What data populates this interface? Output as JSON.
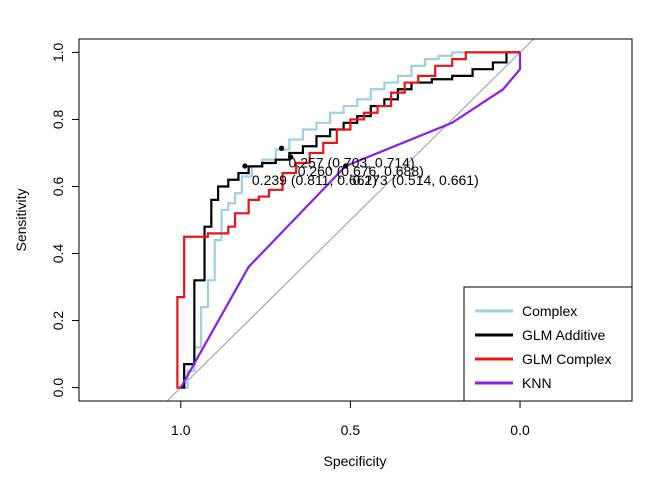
{
  "chart_data": {
    "type": "line",
    "title": "",
    "xlabel": "Specificity",
    "ylabel": "Sensitivity",
    "xlim": [
      1.3,
      -0.33
    ],
    "ylim": [
      -0.04,
      1.04
    ],
    "x_reversed": true,
    "xticks": [
      1.0,
      0.5,
      0.0
    ],
    "xtick_labels": [
      "1.0",
      "0.5",
      "0.0"
    ],
    "yticks": [
      0.0,
      0.2,
      0.4,
      0.6,
      0.8,
      1.0
    ],
    "ytick_labels": [
      "0.0",
      "0.2",
      "0.4",
      "0.6",
      "0.8",
      "1.0"
    ],
    "grid": false,
    "legend_position": "bottom-right",
    "reference_line": {
      "from": [
        1.0,
        0.0
      ],
      "to": [
        0.0,
        1.0
      ],
      "color": "#999999"
    },
    "series": [
      {
        "name": "Complex",
        "color": "#9fd1dc",
        "x": [
          1.0,
          0.98,
          0.98,
          0.96,
          0.96,
          0.94,
          0.94,
          0.92,
          0.92,
          0.9,
          0.9,
          0.88,
          0.88,
          0.86,
          0.86,
          0.84,
          0.84,
          0.82,
          0.82,
          0.79,
          0.79,
          0.76,
          0.76,
          0.72,
          0.72,
          0.68,
          0.68,
          0.64,
          0.64,
          0.6,
          0.6,
          0.56,
          0.56,
          0.52,
          0.52,
          0.48,
          0.48,
          0.44,
          0.44,
          0.4,
          0.4,
          0.36,
          0.36,
          0.32,
          0.32,
          0.28,
          0.28,
          0.24,
          0.24,
          0.2,
          0.2,
          0.16,
          0.16,
          0.12,
          0.12,
          0.0
        ],
        "y": [
          0.0,
          0.0,
          0.05,
          0.05,
          0.12,
          0.12,
          0.24,
          0.24,
          0.32,
          0.32,
          0.44,
          0.44,
          0.53,
          0.53,
          0.55,
          0.55,
          0.58,
          0.58,
          0.63,
          0.63,
          0.66,
          0.66,
          0.68,
          0.68,
          0.71,
          0.71,
          0.74,
          0.74,
          0.77,
          0.77,
          0.79,
          0.79,
          0.82,
          0.82,
          0.84,
          0.84,
          0.86,
          0.86,
          0.89,
          0.89,
          0.91,
          0.91,
          0.93,
          0.93,
          0.96,
          0.96,
          0.98,
          0.98,
          0.99,
          0.99,
          1.0,
          1.0,
          1.0,
          1.0,
          1.0,
          1.0
        ]
      },
      {
        "name": "GLM Additive",
        "color": "#000000",
        "x": [
          1.0,
          0.99,
          0.99,
          0.96,
          0.96,
          0.93,
          0.93,
          0.91,
          0.91,
          0.89,
          0.89,
          0.86,
          0.86,
          0.83,
          0.83,
          0.8,
          0.8,
          0.76,
          0.76,
          0.72,
          0.72,
          0.68,
          0.68,
          0.64,
          0.64,
          0.6,
          0.6,
          0.56,
          0.56,
          0.52,
          0.52,
          0.48,
          0.48,
          0.44,
          0.44,
          0.4,
          0.4,
          0.36,
          0.36,
          0.32,
          0.32,
          0.26,
          0.26,
          0.2,
          0.2,
          0.14,
          0.14,
          0.08,
          0.08,
          0.04,
          0.04,
          0.0
        ],
        "y": [
          0.0,
          0.0,
          0.07,
          0.07,
          0.32,
          0.32,
          0.48,
          0.48,
          0.56,
          0.56,
          0.6,
          0.6,
          0.62,
          0.62,
          0.64,
          0.64,
          0.66,
          0.66,
          0.67,
          0.67,
          0.68,
          0.68,
          0.7,
          0.7,
          0.72,
          0.72,
          0.75,
          0.75,
          0.77,
          0.77,
          0.79,
          0.79,
          0.81,
          0.81,
          0.84,
          0.84,
          0.86,
          0.86,
          0.89,
          0.89,
          0.91,
          0.91,
          0.92,
          0.92,
          0.93,
          0.93,
          0.95,
          0.95,
          0.97,
          0.97,
          1.0,
          1.0
        ]
      },
      {
        "name": "GLM Complex",
        "color": "#e8141a",
        "x": [
          1.0,
          1.01,
          1.01,
          0.99,
          0.99,
          0.96,
          0.96,
          0.92,
          0.92,
          0.89,
          0.89,
          0.86,
          0.86,
          0.84,
          0.84,
          0.8,
          0.8,
          0.77,
          0.77,
          0.74,
          0.74,
          0.7,
          0.7,
          0.66,
          0.66,
          0.62,
          0.62,
          0.58,
          0.58,
          0.54,
          0.54,
          0.5,
          0.5,
          0.46,
          0.46,
          0.42,
          0.42,
          0.38,
          0.38,
          0.34,
          0.34,
          0.3,
          0.3,
          0.25,
          0.25,
          0.2,
          0.2,
          0.16,
          0.16,
          0.1,
          0.1,
          0.0
        ],
        "y": [
          0.0,
          0.0,
          0.27,
          0.27,
          0.45,
          0.45,
          0.45,
          0.45,
          0.46,
          0.46,
          0.46,
          0.46,
          0.48,
          0.48,
          0.52,
          0.52,
          0.56,
          0.56,
          0.57,
          0.57,
          0.59,
          0.59,
          0.64,
          0.64,
          0.67,
          0.67,
          0.7,
          0.7,
          0.73,
          0.73,
          0.77,
          0.77,
          0.8,
          0.8,
          0.82,
          0.82,
          0.84,
          0.84,
          0.88,
          0.88,
          0.91,
          0.91,
          0.93,
          0.93,
          0.96,
          0.96,
          0.98,
          0.98,
          1.0,
          1.0,
          1.0,
          1.0
        ]
      },
      {
        "name": "KNN",
        "color": "#8b1ee6",
        "x": [
          1.0,
          0.8,
          0.514,
          0.2,
          0.05,
          0.0,
          0.0
        ],
        "y": [
          0.0,
          0.36,
          0.661,
          0.79,
          0.89,
          0.95,
          1.0
        ]
      }
    ],
    "threshold_points": [
      {
        "label": "0.257 (0.703, 0.714)",
        "x": 0.703,
        "y": 0.714,
        "color": "#000000"
      },
      {
        "label": "0.260 (0.676, 0.688)",
        "x": 0.676,
        "y": 0.688,
        "color": "#000000"
      },
      {
        "label": "0.239 (0.811, 0.661)",
        "x": 0.811,
        "y": 0.661,
        "color": "#000000"
      },
      {
        "label": "0.273 (0.514, 0.661)",
        "x": 0.514,
        "y": 0.661,
        "color": "#000000"
      }
    ]
  },
  "legend": {
    "items": [
      {
        "label": "Complex",
        "color": "#9fd1dc"
      },
      {
        "label": "GLM Additive",
        "color": "#000000"
      },
      {
        "label": "GLM Complex",
        "color": "#e8141a"
      },
      {
        "label": "KNN",
        "color": "#8b1ee6"
      }
    ]
  }
}
